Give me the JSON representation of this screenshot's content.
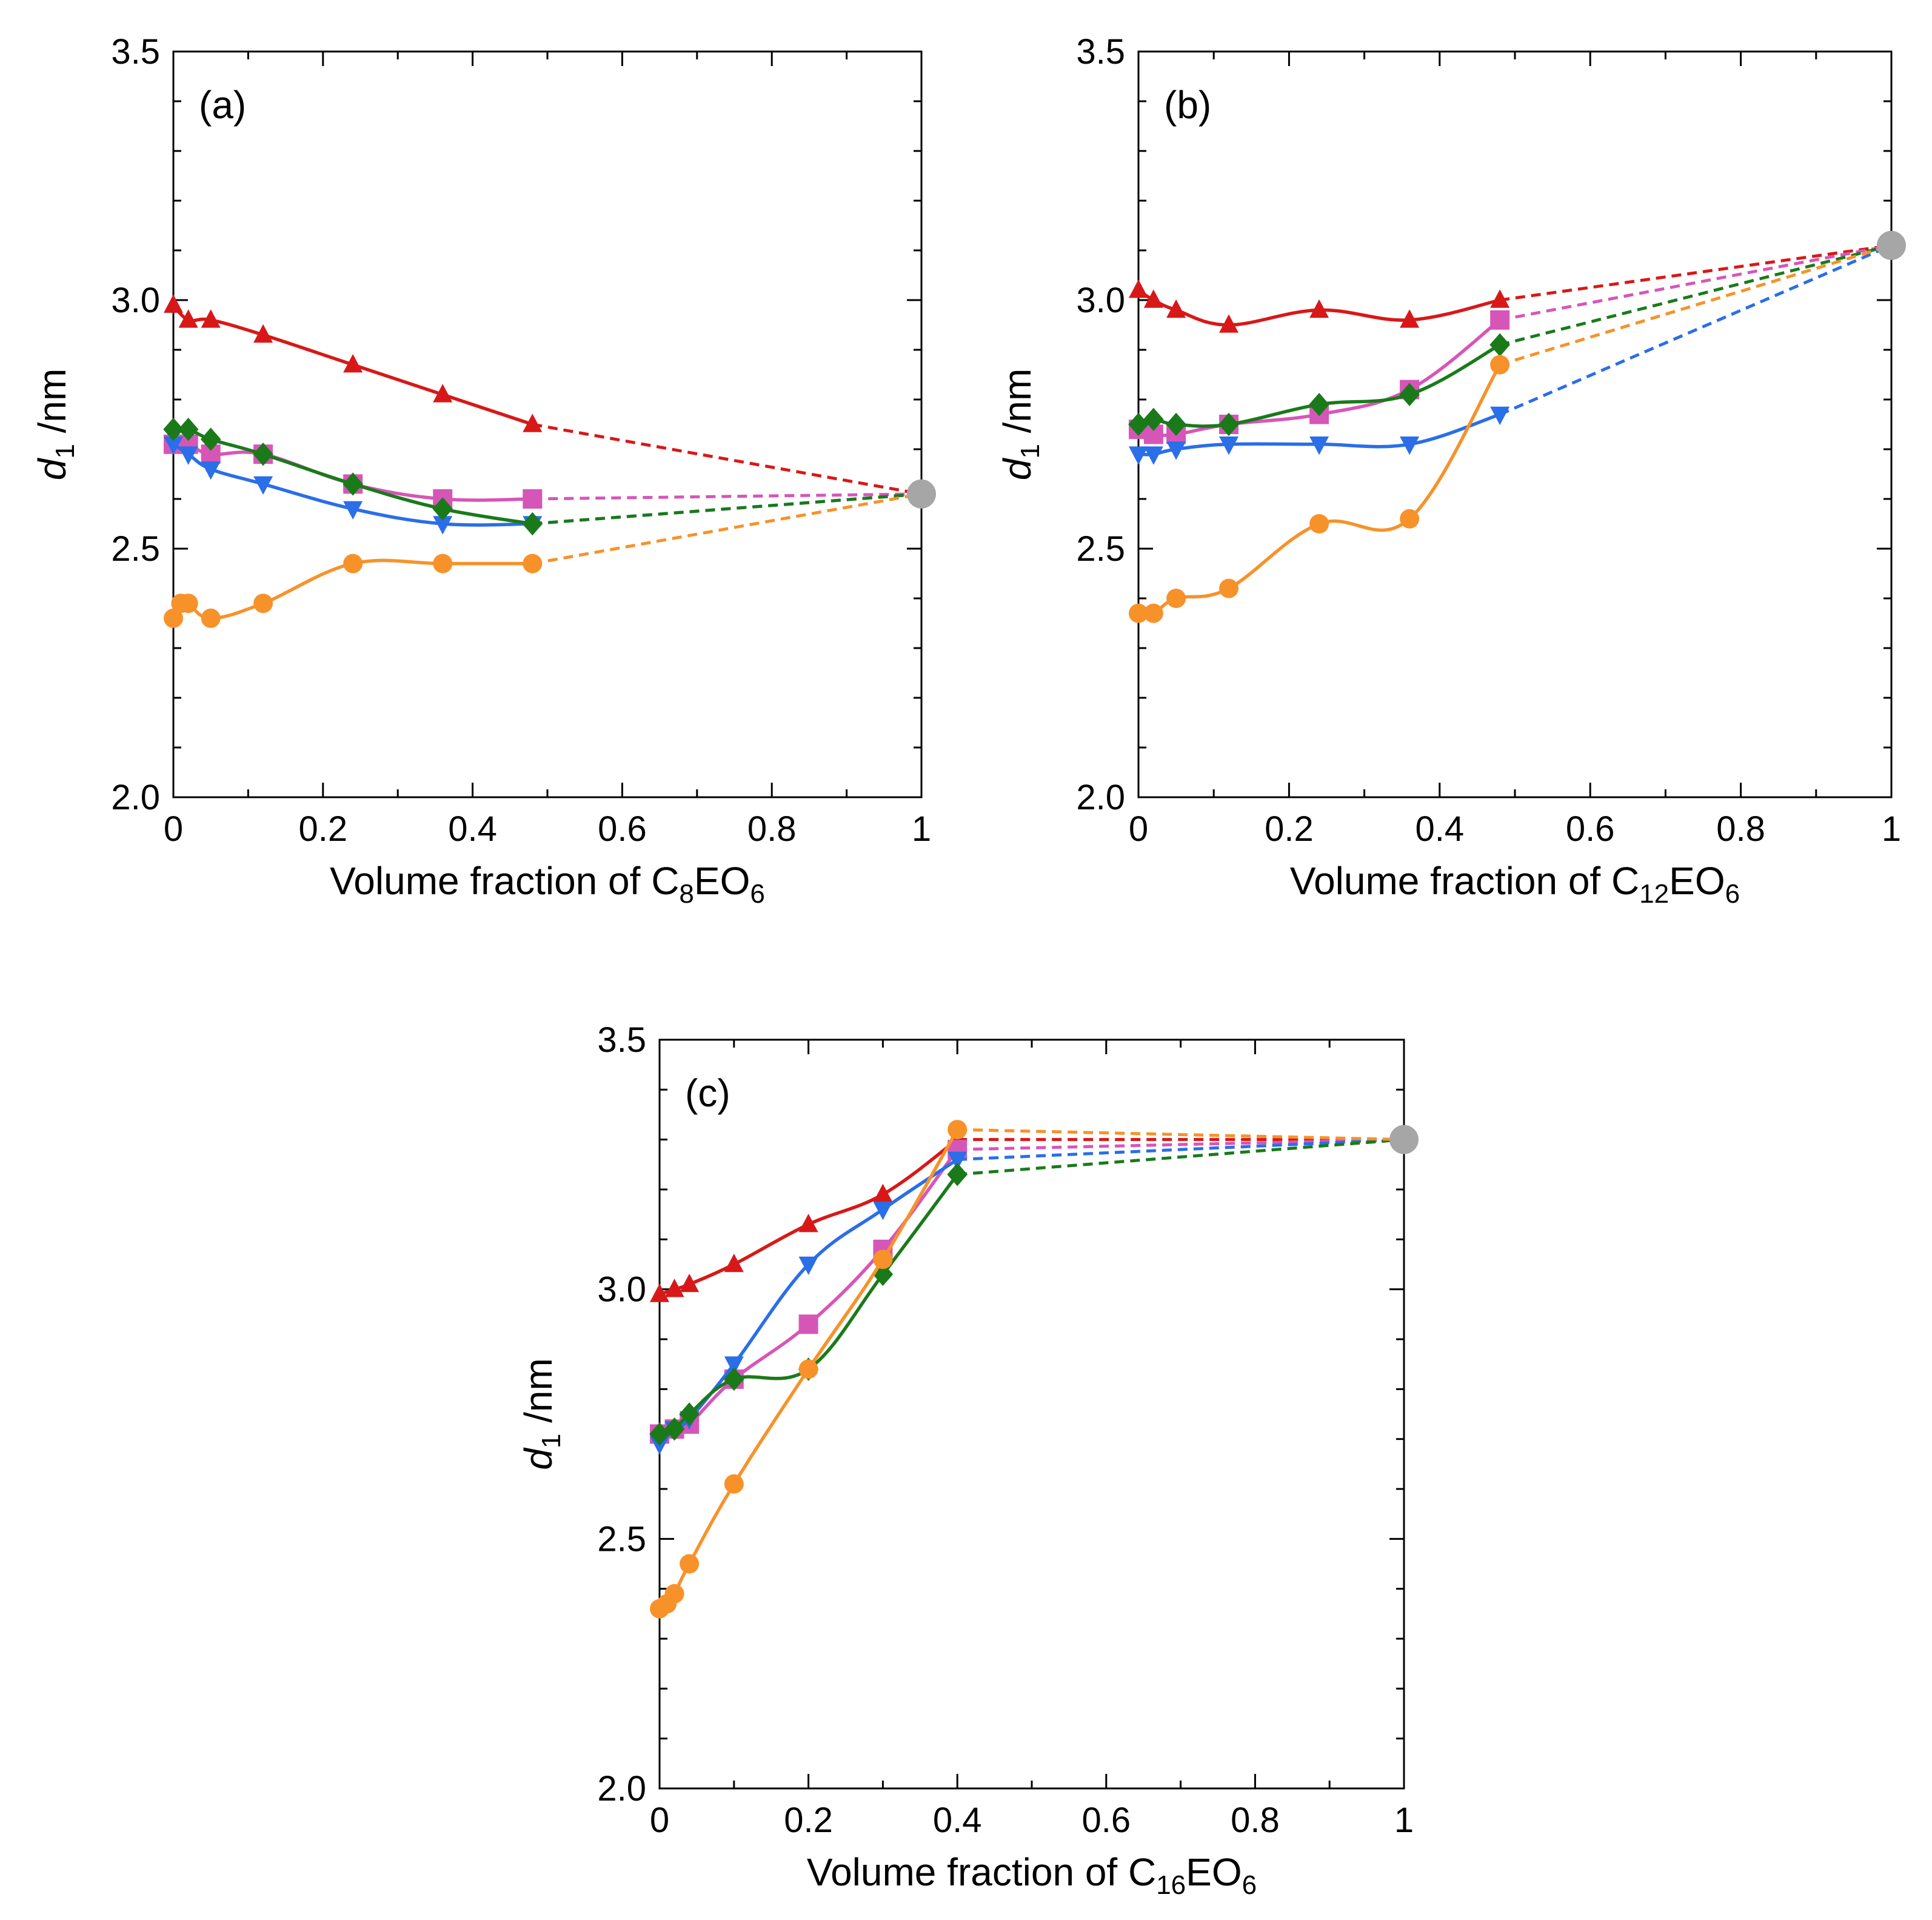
{
  "chart_data": [
    {
      "type": "line",
      "panel_label": "(a)",
      "xlabel": {
        "prefix": "Volume fraction of ",
        "main": "C",
        "sub1": "8",
        "mid": "EO",
        "sub2": "6"
      },
      "ylabel": {
        "italic": "d",
        "sub": "1",
        "rest": " /nm"
      },
      "xlim": [
        0,
        1
      ],
      "ylim": [
        2.0,
        3.5
      ],
      "xticks": [
        {
          "v": 0,
          "t": "0"
        },
        {
          "v": 0.2,
          "t": "0.2"
        },
        {
          "v": 0.4,
          "t": "0.4"
        },
        {
          "v": 0.6,
          "t": "0.6"
        },
        {
          "v": 0.8,
          "t": "0.8"
        },
        {
          "v": 1,
          "t": "1"
        }
      ],
      "yticks": [
        {
          "v": 2.0,
          "t": "2.0"
        },
        {
          "v": 2.5,
          "t": "2.5"
        },
        {
          "v": 3.0,
          "t": "3.0"
        },
        {
          "v": 3.5,
          "t": "3.5"
        }
      ],
      "endpoint": {
        "x": 1.0,
        "y": 2.61,
        "color": "#a6a6a6"
      },
      "series": [
        {
          "color": "#d81818",
          "marker": "triangle-up",
          "x": [
            0,
            0.02,
            0.05,
            0.12,
            0.24,
            0.36,
            0.48
          ],
          "y": [
            2.99,
            2.96,
            2.96,
            2.93,
            2.87,
            2.81,
            2.75
          ]
        },
        {
          "color": "#d656b8",
          "marker": "square",
          "x": [
            0,
            0.02,
            0.05,
            0.12,
            0.24,
            0.36,
            0.48
          ],
          "y": [
            2.71,
            2.71,
            2.69,
            2.69,
            2.63,
            2.6,
            2.6
          ]
        },
        {
          "color": "#2a6ee8",
          "marker": "triangle-down",
          "x": [
            0,
            0.02,
            0.05,
            0.12,
            0.24,
            0.36,
            0.48
          ],
          "y": [
            2.71,
            2.69,
            2.66,
            2.63,
            2.58,
            2.55,
            2.55
          ]
        },
        {
          "color": "#1a7a1a",
          "marker": "diamond",
          "x": [
            0,
            0.02,
            0.05,
            0.12,
            0.24,
            0.36,
            0.48
          ],
          "y": [
            2.74,
            2.74,
            2.72,
            2.69,
            2.63,
            2.58,
            2.55
          ]
        },
        {
          "color": "#f7922a",
          "marker": "circle",
          "x": [
            0,
            0.01,
            0.02,
            0.05,
            0.12,
            0.24,
            0.36,
            0.48
          ],
          "y": [
            2.36,
            2.39,
            2.39,
            2.36,
            2.39,
            2.47,
            2.47,
            2.47
          ]
        }
      ]
    },
    {
      "type": "line",
      "panel_label": "(b)",
      "xlabel": {
        "prefix": "Volume fraction of ",
        "main": "C",
        "sub1": "12",
        "mid": "EO",
        "sub2": "6"
      },
      "ylabel": {
        "italic": "d",
        "sub": "1",
        "rest": " /nm"
      },
      "xlim": [
        0,
        1
      ],
      "ylim": [
        2.0,
        3.5
      ],
      "xticks": [
        {
          "v": 0,
          "t": "0"
        },
        {
          "v": 0.2,
          "t": "0.2"
        },
        {
          "v": 0.4,
          "t": "0.4"
        },
        {
          "v": 0.6,
          "t": "0.6"
        },
        {
          "v": 0.8,
          "t": "0.8"
        },
        {
          "v": 1,
          "t": "1"
        }
      ],
      "yticks": [
        {
          "v": 2.0,
          "t": "2.0"
        },
        {
          "v": 2.5,
          "t": "2.5"
        },
        {
          "v": 3.0,
          "t": "3.0"
        },
        {
          "v": 3.5,
          "t": "3.5"
        }
      ],
      "endpoint": {
        "x": 1.0,
        "y": 3.11,
        "color": "#a6a6a6"
      },
      "series": [
        {
          "color": "#d81818",
          "marker": "triangle-up",
          "x": [
            0,
            0.02,
            0.05,
            0.12,
            0.24,
            0.36,
            0.48
          ],
          "y": [
            3.02,
            3.0,
            2.98,
            2.95,
            2.98,
            2.96,
            3.0
          ]
        },
        {
          "color": "#d656b8",
          "marker": "square",
          "x": [
            0,
            0.02,
            0.05,
            0.12,
            0.24,
            0.36,
            0.48
          ],
          "y": [
            2.74,
            2.73,
            2.73,
            2.75,
            2.77,
            2.82,
            2.96
          ]
        },
        {
          "color": "#2a6ee8",
          "marker": "triangle-down",
          "x": [
            0,
            0.02,
            0.05,
            0.12,
            0.24,
            0.36,
            0.48
          ],
          "y": [
            2.69,
            2.69,
            2.7,
            2.71,
            2.71,
            2.71,
            2.77
          ]
        },
        {
          "color": "#1a7a1a",
          "marker": "diamond",
          "x": [
            0,
            0.02,
            0.05,
            0.12,
            0.24,
            0.36,
            0.48
          ],
          "y": [
            2.75,
            2.76,
            2.75,
            2.75,
            2.79,
            2.81,
            2.91
          ]
        },
        {
          "color": "#f7922a",
          "marker": "circle",
          "x": [
            0,
            0.02,
            0.05,
            0.12,
            0.24,
            0.36,
            0.48
          ],
          "y": [
            2.37,
            2.37,
            2.4,
            2.42,
            2.55,
            2.56,
            2.87
          ]
        }
      ]
    },
    {
      "type": "line",
      "panel_label": "(c)",
      "xlabel": {
        "prefix": "Volume fraction of ",
        "main": "C",
        "sub1": "16",
        "mid": "EO",
        "sub2": "6"
      },
      "ylabel": {
        "italic": "d",
        "sub": "1",
        "rest": " /nm"
      },
      "xlim": [
        0,
        1
      ],
      "ylim": [
        2.0,
        3.5
      ],
      "xticks": [
        {
          "v": 0,
          "t": "0"
        },
        {
          "v": 0.2,
          "t": "0.2"
        },
        {
          "v": 0.4,
          "t": "0.4"
        },
        {
          "v": 0.6,
          "t": "0.6"
        },
        {
          "v": 0.8,
          "t": "0.8"
        },
        {
          "v": 1,
          "t": "1"
        }
      ],
      "yticks": [
        {
          "v": 2.0,
          "t": "2.0"
        },
        {
          "v": 2.5,
          "t": "2.5"
        },
        {
          "v": 3.0,
          "t": "3.0"
        },
        {
          "v": 3.5,
          "t": "3.5"
        }
      ],
      "endpoint": {
        "x": 1.0,
        "y": 3.3,
        "color": "#a6a6a6"
      },
      "series": [
        {
          "color": "#d81818",
          "marker": "triangle-up",
          "x": [
            0,
            0.02,
            0.04,
            0.1,
            0.2,
            0.3,
            0.4
          ],
          "y": [
            2.99,
            3.0,
            3.01,
            3.05,
            3.13,
            3.19,
            3.3
          ]
        },
        {
          "color": "#d656b8",
          "marker": "square",
          "x": [
            0,
            0.02,
            0.04,
            0.1,
            0.2,
            0.3,
            0.4
          ],
          "y": [
            2.71,
            2.72,
            2.73,
            2.82,
            2.93,
            3.08,
            3.28
          ]
        },
        {
          "color": "#2a6ee8",
          "marker": "triangle-down",
          "x": [
            0,
            0.02,
            0.04,
            0.1,
            0.2,
            0.3,
            0.4
          ],
          "y": [
            2.69,
            2.72,
            2.74,
            2.85,
            3.05,
            3.16,
            3.26
          ]
        },
        {
          "color": "#1a7a1a",
          "marker": "diamond",
          "x": [
            0,
            0.02,
            0.04,
            0.1,
            0.2,
            0.3,
            0.4
          ],
          "y": [
            2.71,
            2.72,
            2.75,
            2.82,
            2.84,
            3.03,
            3.23
          ]
        },
        {
          "color": "#f7922a",
          "marker": "circle",
          "x": [
            0,
            0.01,
            0.02,
            0.04,
            0.1,
            0.2,
            0.3,
            0.4
          ],
          "y": [
            2.36,
            2.37,
            2.39,
            2.45,
            2.61,
            2.84,
            3.06,
            3.32
          ]
        }
      ]
    }
  ]
}
